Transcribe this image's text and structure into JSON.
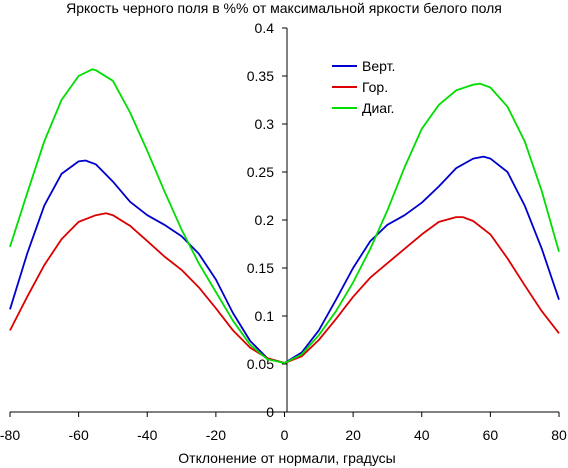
{
  "chart_data": {
    "type": "line",
    "title": "Яркость черного поля в %% от максимальной яркости белого поля",
    "xlabel": "Отклонение от нормали, градусы",
    "ylabel": "",
    "xlim": [
      -80,
      80
    ],
    "ylim": [
      0,
      0.4
    ],
    "x_ticks": [
      "-80",
      "-60",
      "-40",
      "-20",
      "0",
      "20",
      "40",
      "60",
      "80"
    ],
    "y_ticks": [
      "0",
      "0.05",
      "0.1",
      "0.15",
      "0.2",
      "0.25",
      "0.3",
      "0.35",
      "0.4"
    ],
    "grid": false,
    "legend_position": "top-right",
    "series": [
      {
        "name": "Верт.",
        "color": "#0000cc",
        "x": [
          -80,
          -75,
          -70,
          -65,
          -60,
          -58,
          -55,
          -50,
          -45,
          -40,
          -35,
          -30,
          -25,
          -20,
          -15,
          -10,
          -5,
          0,
          5,
          10,
          15,
          20,
          25,
          30,
          35,
          40,
          45,
          50,
          55,
          58,
          60,
          65,
          70,
          75,
          80
        ],
        "y": [
          0.107,
          0.165,
          0.215,
          0.248,
          0.261,
          0.262,
          0.258,
          0.24,
          0.219,
          0.205,
          0.195,
          0.183,
          0.165,
          0.138,
          0.103,
          0.074,
          0.056,
          0.051,
          0.062,
          0.085,
          0.117,
          0.15,
          0.178,
          0.195,
          0.205,
          0.218,
          0.235,
          0.254,
          0.264,
          0.266,
          0.264,
          0.25,
          0.215,
          0.17,
          0.117
        ]
      },
      {
        "name": "Гор.",
        "color": "#dd0000",
        "x": [
          -80,
          -75,
          -70,
          -65,
          -60,
          -55,
          -52,
          -50,
          -45,
          -40,
          -35,
          -30,
          -25,
          -20,
          -15,
          -10,
          -5,
          0,
          5,
          10,
          15,
          20,
          25,
          30,
          35,
          40,
          45,
          50,
          52,
          55,
          60,
          65,
          70,
          75,
          80
        ],
        "y": [
          0.085,
          0.12,
          0.153,
          0.18,
          0.198,
          0.205,
          0.207,
          0.205,
          0.194,
          0.178,
          0.162,
          0.148,
          0.13,
          0.108,
          0.085,
          0.067,
          0.056,
          0.051,
          0.058,
          0.075,
          0.097,
          0.12,
          0.14,
          0.155,
          0.17,
          0.185,
          0.198,
          0.203,
          0.203,
          0.199,
          0.185,
          0.16,
          0.132,
          0.105,
          0.082
        ]
      },
      {
        "name": "Диаг.",
        "color": "#00dd00",
        "x": [
          -80,
          -75,
          -70,
          -65,
          -60,
          -56,
          -55,
          -50,
          -45,
          -40,
          -35,
          -30,
          -25,
          -20,
          -15,
          -10,
          -5,
          0,
          5,
          10,
          15,
          20,
          25,
          30,
          35,
          40,
          45,
          50,
          55,
          57,
          60,
          65,
          70,
          75,
          80
        ],
        "y": [
          0.172,
          0.228,
          0.282,
          0.325,
          0.35,
          0.357,
          0.356,
          0.345,
          0.312,
          0.272,
          0.23,
          0.19,
          0.155,
          0.125,
          0.095,
          0.07,
          0.055,
          0.051,
          0.06,
          0.08,
          0.105,
          0.135,
          0.17,
          0.21,
          0.255,
          0.295,
          0.32,
          0.335,
          0.341,
          0.342,
          0.338,
          0.318,
          0.282,
          0.23,
          0.167
        ]
      }
    ]
  }
}
